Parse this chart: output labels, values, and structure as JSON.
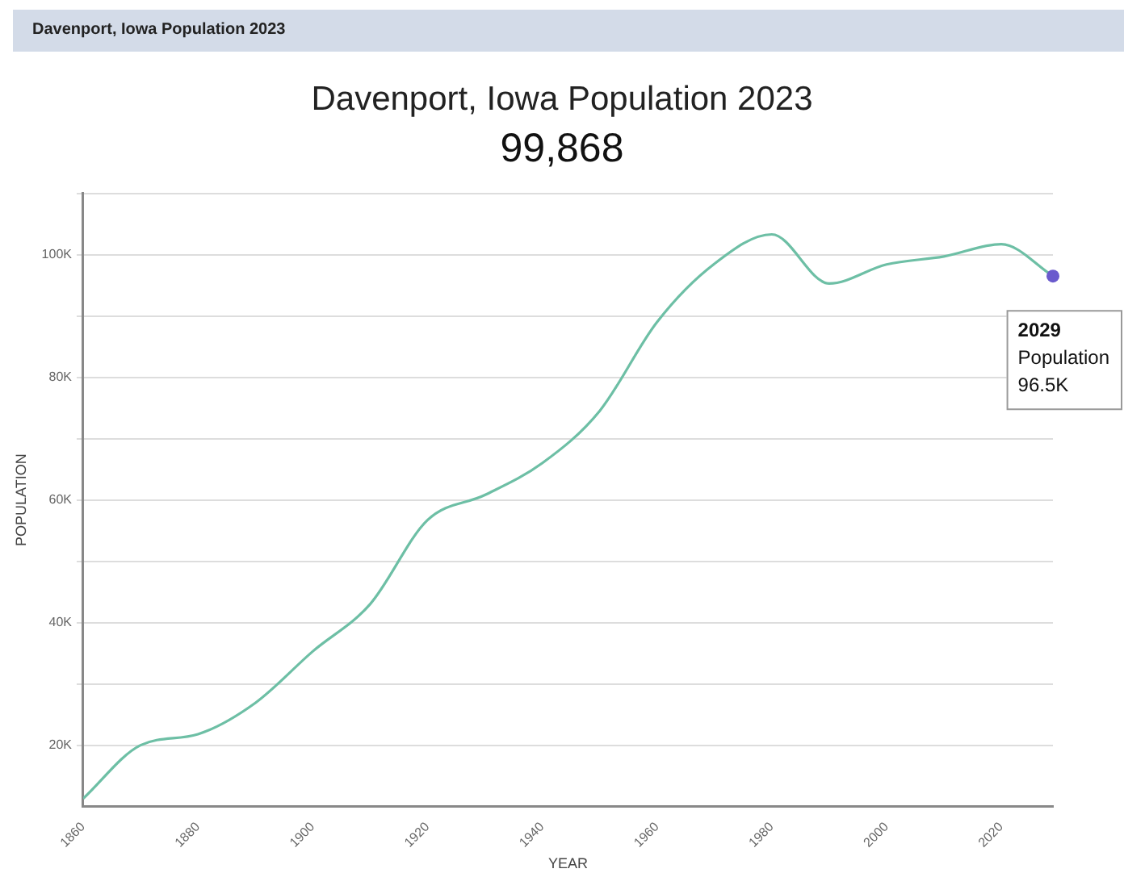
{
  "chart_data": {
    "type": "line",
    "title": "Davenport, Iowa Population 2023",
    "subtitle": "99,868",
    "xlabel": "YEAR",
    "ylabel": "POPULATION",
    "annotations": [
      "Davenport, Iowa Population 2023",
      {
        "text": "2029\nPopulation\n96.5K",
        "x": 2029,
        "y": 96500
      }
    ],
    "x": [
      1860,
      1870,
      1880,
      1890,
      1900,
      1910,
      1920,
      1930,
      1940,
      1950,
      1960,
      1970,
      1980,
      1990,
      2000,
      2010,
      2020,
      2029
    ],
    "series": [
      {
        "color": "#6dbfa5",
        "values": [
          11300,
          20000,
          21800,
          26900,
          35300,
          43000,
          56700,
          60800,
          66000,
          74500,
          89000,
          98500,
          103300,
          95300,
          98400,
          99700,
          101700,
          96500
        ]
      }
    ],
    "xlim": [
      1860,
      2029
    ],
    "xticks": [
      1860,
      1880,
      1900,
      1920,
      1940,
      1960,
      1980,
      2000,
      2020
    ],
    "ylim": [
      10000,
      110000
    ],
    "yticks": [
      {
        "value": 20000,
        "label": "20K"
      },
      {
        "value": 30000,
        "label": null
      },
      {
        "value": 40000,
        "label": "40K"
      },
      {
        "value": 50000,
        "label": null
      },
      {
        "value": 60000,
        "label": "60K"
      },
      {
        "value": 70000,
        "label": null
      },
      {
        "value": 80000,
        "label": "80K"
      },
      {
        "value": 90000,
        "label": null
      },
      {
        "value": 100000,
        "label": "100K"
      },
      {
        "value": 110000,
        "label": null
      }
    ],
    "grid": "y",
    "legend": false,
    "marker": "none",
    "line_style": "solid"
  }
}
